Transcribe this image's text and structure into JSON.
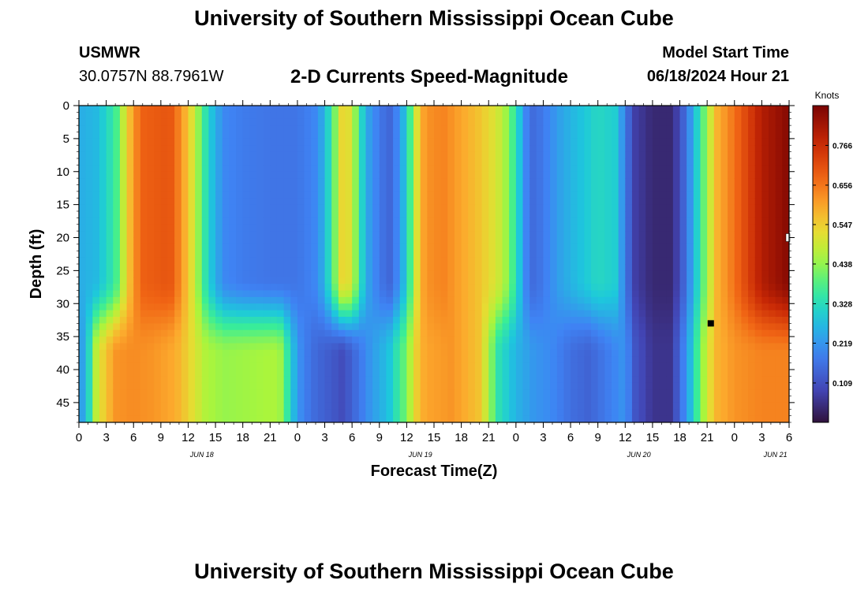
{
  "header": {
    "title": "University of Southern Mississippi Ocean Cube",
    "station": "USMWR",
    "coords": "30.0757N  88.7961W",
    "chart_title": "2-D Currents Speed-Magnitude",
    "model_start_label": "Model Start Time",
    "model_start_value": "06/18/2024 Hour 21"
  },
  "footer": {
    "title": "University of Southern Mississippi Ocean Cube"
  },
  "chart_data": {
    "type": "heatmap",
    "title": "2-D Currents Speed-Magnitude",
    "xlabel": "Forecast Time(Z)",
    "ylabel": "Depth (ft)",
    "x_tick_labels": [
      "0",
      "3",
      "6",
      "9",
      "12",
      "15",
      "18",
      "21",
      "0",
      "3",
      "6",
      "9",
      "12",
      "15",
      "18",
      "21",
      "0",
      "3",
      "6",
      "9",
      "12",
      "15",
      "18",
      "21",
      "0",
      "3",
      "6"
    ],
    "date_labels": [
      {
        "text": "JUN 18",
        "at_tick": 4.5
      },
      {
        "text": "JUN 19",
        "at_tick": 12.5
      },
      {
        "text": "JUN 20",
        "at_tick": 20.5
      },
      {
        "text": "JUN 21",
        "at_tick": 25.5
      }
    ],
    "x_range_hours": [
      0,
      78
    ],
    "y_tick_labels": [
      "0",
      "5",
      "10",
      "15",
      "20",
      "25",
      "30",
      "35",
      "40",
      "45"
    ],
    "ylim": [
      0,
      48
    ],
    "colorbar": {
      "label": "Knots",
      "range": [
        0,
        0.876
      ],
      "tick_labels": [
        "0.766",
        "0.656",
        "0.547",
        "0.438",
        "0.328",
        "0.219",
        "0.109"
      ],
      "tick_values": [
        0.766,
        0.656,
        0.547,
        0.438,
        0.328,
        0.219,
        0.109
      ]
    },
    "surface_profile_by_hour": [
      [
        0,
        0.25
      ],
      [
        2,
        0.27
      ],
      [
        4,
        0.36
      ],
      [
        5,
        0.5
      ],
      [
        6,
        0.62
      ],
      [
        7,
        0.68
      ],
      [
        10,
        0.7
      ],
      [
        11,
        0.64
      ],
      [
        12,
        0.56
      ],
      [
        13,
        0.45
      ],
      [
        14,
        0.33
      ],
      [
        15,
        0.25
      ],
      [
        16,
        0.2
      ],
      [
        18,
        0.18
      ],
      [
        21,
        0.17
      ],
      [
        24,
        0.17
      ],
      [
        26,
        0.2
      ],
      [
        27,
        0.26
      ],
      [
        28,
        0.4
      ],
      [
        29,
        0.55
      ],
      [
        30,
        0.5
      ],
      [
        31,
        0.32
      ],
      [
        32,
        0.22
      ],
      [
        34,
        0.14
      ],
      [
        35,
        0.2
      ],
      [
        36,
        0.3
      ],
      [
        37,
        0.5
      ],
      [
        38,
        0.62
      ],
      [
        40,
        0.64
      ],
      [
        42,
        0.6
      ],
      [
        44,
        0.56
      ],
      [
        46,
        0.5
      ],
      [
        47,
        0.44
      ],
      [
        48,
        0.34
      ],
      [
        49,
        0.2
      ],
      [
        50,
        0.15
      ],
      [
        51,
        0.18
      ],
      [
        53,
        0.24
      ],
      [
        55,
        0.28
      ],
      [
        57,
        0.32
      ],
      [
        59,
        0.3
      ],
      [
        60,
        0.18
      ],
      [
        61,
        0.08
      ],
      [
        63,
        0.04
      ],
      [
        65,
        0.04
      ],
      [
        66,
        0.1
      ],
      [
        67,
        0.2
      ],
      [
        68,
        0.32
      ],
      [
        69,
        0.45
      ],
      [
        70,
        0.58
      ],
      [
        72,
        0.66
      ],
      [
        75,
        0.8
      ],
      [
        78,
        0.86
      ]
    ],
    "deep_profile_by_hour": [
      [
        0,
        0.2
      ],
      [
        1,
        0.3
      ],
      [
        2,
        0.5
      ],
      [
        4,
        0.62
      ],
      [
        6,
        0.63
      ],
      [
        8,
        0.62
      ],
      [
        10,
        0.6
      ],
      [
        11,
        0.58
      ],
      [
        12,
        0.54
      ],
      [
        13,
        0.5
      ],
      [
        14,
        0.46
      ],
      [
        16,
        0.44
      ],
      [
        19,
        0.45
      ],
      [
        22,
        0.46
      ],
      [
        23,
        0.34
      ],
      [
        24,
        0.22
      ],
      [
        25,
        0.18
      ],
      [
        26,
        0.15
      ],
      [
        28,
        0.12
      ],
      [
        29,
        0.1
      ],
      [
        30,
        0.14
      ],
      [
        32,
        0.22
      ],
      [
        34,
        0.28
      ],
      [
        35,
        0.35
      ],
      [
        36,
        0.42
      ],
      [
        37,
        0.54
      ],
      [
        38,
        0.6
      ],
      [
        41,
        0.62
      ],
      [
        44,
        0.56
      ],
      [
        45,
        0.46
      ],
      [
        46,
        0.34
      ],
      [
        48,
        0.26
      ],
      [
        50,
        0.22
      ],
      [
        52,
        0.2
      ],
      [
        54,
        0.16
      ],
      [
        56,
        0.14
      ],
      [
        58,
        0.18
      ],
      [
        60,
        0.22
      ],
      [
        61,
        0.12
      ],
      [
        63,
        0.06
      ],
      [
        65,
        0.06
      ],
      [
        66,
        0.15
      ],
      [
        67,
        0.25
      ],
      [
        68,
        0.38
      ],
      [
        69,
        0.5
      ],
      [
        70,
        0.58
      ],
      [
        72,
        0.62
      ],
      [
        75,
        0.64
      ],
      [
        78,
        0.64
      ]
    ]
  }
}
